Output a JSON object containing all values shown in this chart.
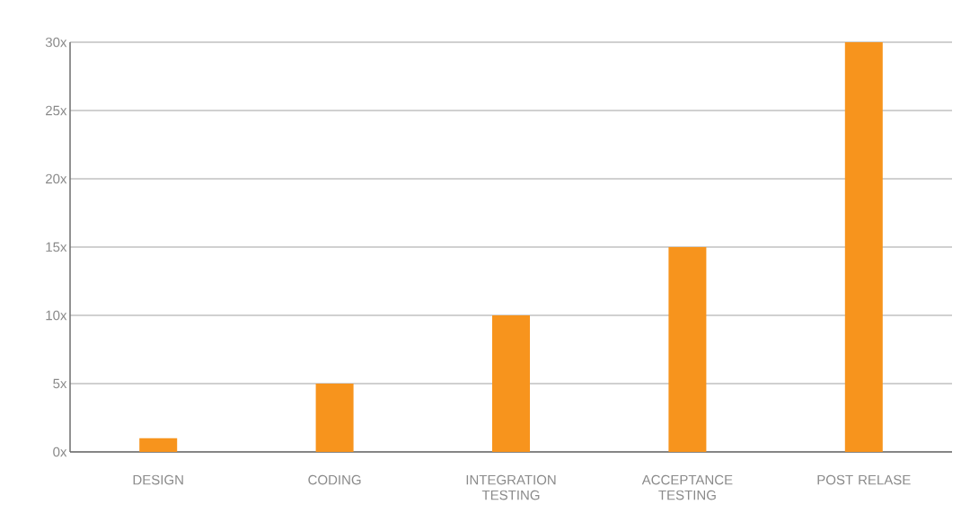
{
  "chart_data": {
    "type": "bar",
    "categories": [
      "DESIGN",
      "CODING",
      "INTEGRATION TESTING",
      "ACCEPTANCE TESTING",
      "POST RELASE"
    ],
    "values": [
      1,
      5,
      10,
      15,
      30
    ],
    "color": "#f7941d",
    "ylim": [
      0,
      30
    ],
    "yticks": [
      {
        "value": 0,
        "label": "0x"
      },
      {
        "value": 5,
        "label": "5x"
      },
      {
        "value": 10,
        "label": "10x"
      },
      {
        "value": 15,
        "label": "15x"
      },
      {
        "value": 20,
        "label": "20x"
      },
      {
        "value": 25,
        "label": "25x"
      },
      {
        "value": 30,
        "label": "30x"
      }
    ],
    "grid": "y"
  }
}
